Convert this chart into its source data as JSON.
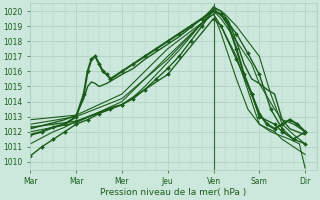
{
  "bg_color": "#cce8dc",
  "grid_color": "#aacfbe",
  "line_color": "#1a5c1a",
  "xlabel": "Pression niveau de la mer( hPa )",
  "ylim": [
    1009.5,
    1020.5
  ],
  "yticks": [
    1010,
    1011,
    1012,
    1013,
    1014,
    1015,
    1016,
    1017,
    1018,
    1019,
    1020
  ],
  "xtick_labels": [
    "Mar",
    "Mar",
    "Mer",
    "Jeu",
    "Ven",
    "Sam",
    "Dir"
  ],
  "xtick_positions": [
    0,
    24,
    48,
    72,
    96,
    120,
    144
  ],
  "xlim": [
    0,
    150
  ],
  "vline_x": 96,
  "vline_color": "#336633",
  "lines": [
    {
      "pts": [
        [
          0,
          1010.4
        ],
        [
          6,
          1011.0
        ],
        [
          12,
          1011.5
        ],
        [
          18,
          1012.0
        ],
        [
          24,
          1012.5
        ],
        [
          30,
          1012.8
        ],
        [
          36,
          1013.2
        ],
        [
          42,
          1013.5
        ],
        [
          48,
          1013.8
        ],
        [
          54,
          1014.2
        ],
        [
          60,
          1014.8
        ],
        [
          66,
          1015.5
        ],
        [
          72,
          1016.2
        ],
        [
          78,
          1017.0
        ],
        [
          84,
          1018.0
        ],
        [
          90,
          1019.0
        ],
        [
          96,
          1020.1
        ],
        [
          102,
          1019.5
        ],
        [
          108,
          1018.5
        ],
        [
          114,
          1017.2
        ],
        [
          120,
          1015.8
        ],
        [
          126,
          1013.5
        ],
        [
          132,
          1012.2
        ],
        [
          138,
          1011.5
        ],
        [
          144,
          1012.0
        ]
      ],
      "marker": true,
      "lw": 1.0
    },
    {
      "pts": [
        [
          0,
          1011.2
        ],
        [
          6,
          1011.6
        ],
        [
          12,
          1012.0
        ],
        [
          18,
          1012.3
        ],
        [
          24,
          1012.7
        ],
        [
          30,
          1013.0
        ],
        [
          36,
          1013.3
        ],
        [
          42,
          1013.6
        ],
        [
          48,
          1013.8
        ],
        [
          54,
          1014.3
        ],
        [
          60,
          1015.0
        ],
        [
          66,
          1015.8
        ],
        [
          72,
          1016.6
        ],
        [
          78,
          1017.4
        ],
        [
          84,
          1018.3
        ],
        [
          90,
          1019.2
        ],
        [
          96,
          1020.3
        ],
        [
          102,
          1019.8
        ],
        [
          108,
          1019.0
        ],
        [
          114,
          1018.0
        ],
        [
          120,
          1017.0
        ],
        [
          126,
          1014.5
        ],
        [
          132,
          1012.5
        ],
        [
          138,
          1011.8
        ],
        [
          144,
          1011.2
        ]
      ],
      "marker": false,
      "lw": 0.8
    },
    {
      "pts": [
        [
          0,
          1011.8
        ],
        [
          6,
          1012.0
        ],
        [
          12,
          1012.3
        ],
        [
          18,
          1012.5
        ],
        [
          24,
          1013.0
        ],
        [
          28,
          1014.5
        ],
        [
          30,
          1016.0
        ],
        [
          32,
          1016.8
        ],
        [
          34,
          1017.0
        ],
        [
          36,
          1016.5
        ],
        [
          38,
          1016.0
        ],
        [
          40,
          1015.8
        ],
        [
          42,
          1015.5
        ],
        [
          48,
          1016.0
        ],
        [
          54,
          1016.5
        ],
        [
          60,
          1017.0
        ],
        [
          66,
          1017.5
        ],
        [
          72,
          1018.0
        ],
        [
          78,
          1018.5
        ],
        [
          84,
          1019.0
        ],
        [
          90,
          1019.5
        ],
        [
          96,
          1020.0
        ],
        [
          100,
          1019.8
        ],
        [
          104,
          1019.0
        ],
        [
          108,
          1017.5
        ],
        [
          112,
          1015.8
        ],
        [
          116,
          1014.5
        ],
        [
          120,
          1013.2
        ],
        [
          124,
          1012.5
        ],
        [
          128,
          1012.2
        ],
        [
          132,
          1012.5
        ],
        [
          136,
          1012.8
        ],
        [
          140,
          1012.5
        ],
        [
          144,
          1012.0
        ]
      ],
      "marker": true,
      "lw": 1.5
    },
    {
      "pts": [
        [
          0,
          1012.2
        ],
        [
          6,
          1012.4
        ],
        [
          12,
          1012.6
        ],
        [
          18,
          1012.8
        ],
        [
          24,
          1013.1
        ],
        [
          28,
          1014.2
        ],
        [
          30,
          1015.0
        ],
        [
          32,
          1015.3
        ],
        [
          34,
          1015.2
        ],
        [
          36,
          1015.0
        ],
        [
          40,
          1015.2
        ],
        [
          48,
          1015.8
        ],
        [
          54,
          1016.2
        ],
        [
          60,
          1016.8
        ],
        [
          66,
          1017.3
        ],
        [
          72,
          1017.8
        ],
        [
          78,
          1018.3
        ],
        [
          84,
          1018.9
        ],
        [
          90,
          1019.5
        ],
        [
          96,
          1020.2
        ],
        [
          100,
          1020.0
        ],
        [
          104,
          1019.3
        ],
        [
          108,
          1018.0
        ],
        [
          112,
          1016.5
        ],
        [
          116,
          1015.5
        ],
        [
          120,
          1015.2
        ],
        [
          124,
          1014.8
        ],
        [
          128,
          1014.5
        ],
        [
          132,
          1012.8
        ],
        [
          136,
          1012.2
        ],
        [
          140,
          1012.0
        ],
        [
          144,
          1011.8
        ]
      ],
      "marker": false,
      "lw": 1.0
    },
    {
      "pts": [
        [
          0,
          1012.5
        ],
        [
          24,
          1013.0
        ],
        [
          48,
          1014.2
        ],
        [
          72,
          1016.8
        ],
        [
          96,
          1020.0
        ],
        [
          100,
          1019.5
        ],
        [
          108,
          1018.0
        ],
        [
          116,
          1016.5
        ],
        [
          120,
          1015.2
        ],
        [
          128,
          1013.5
        ],
        [
          132,
          1012.8
        ],
        [
          138,
          1012.5
        ],
        [
          144,
          1012.0
        ]
      ],
      "marker": false,
      "lw": 0.8
    },
    {
      "pts": [
        [
          0,
          1012.8
        ],
        [
          24,
          1013.1
        ],
        [
          48,
          1014.5
        ],
        [
          72,
          1017.5
        ],
        [
          96,
          1019.8
        ],
        [
          100,
          1019.0
        ],
        [
          108,
          1017.0
        ],
        [
          116,
          1014.0
        ],
        [
          120,
          1012.5
        ],
        [
          128,
          1012.0
        ],
        [
          132,
          1011.5
        ],
        [
          138,
          1011.0
        ],
        [
          144,
          1010.5
        ]
      ],
      "marker": false,
      "lw": 0.8
    },
    {
      "pts": [
        [
          0,
          1012.0
        ],
        [
          24,
          1012.6
        ],
        [
          48,
          1014.0
        ],
        [
          72,
          1017.0
        ],
        [
          90,
          1019.2
        ],
        [
          96,
          1019.8
        ],
        [
          100,
          1018.5
        ],
        [
          108,
          1015.5
        ],
        [
          114,
          1013.5
        ],
        [
          120,
          1012.5
        ],
        [
          126,
          1012.0
        ],
        [
          130,
          1011.8
        ],
        [
          136,
          1011.5
        ],
        [
          141,
          1011.2
        ],
        [
          144,
          1009.6
        ]
      ],
      "marker": false,
      "lw": 0.8
    },
    {
      "pts": [
        [
          0,
          1012.3
        ],
        [
          24,
          1012.7
        ],
        [
          48,
          1013.8
        ],
        [
          72,
          1015.8
        ],
        [
          96,
          1019.5
        ],
        [
          100,
          1019.0
        ],
        [
          108,
          1016.8
        ],
        [
          116,
          1014.5
        ],
        [
          120,
          1013.0
        ],
        [
          128,
          1012.5
        ],
        [
          132,
          1012.0
        ],
        [
          138,
          1011.5
        ],
        [
          144,
          1011.2
        ]
      ],
      "marker": true,
      "lw": 1.0
    }
  ]
}
